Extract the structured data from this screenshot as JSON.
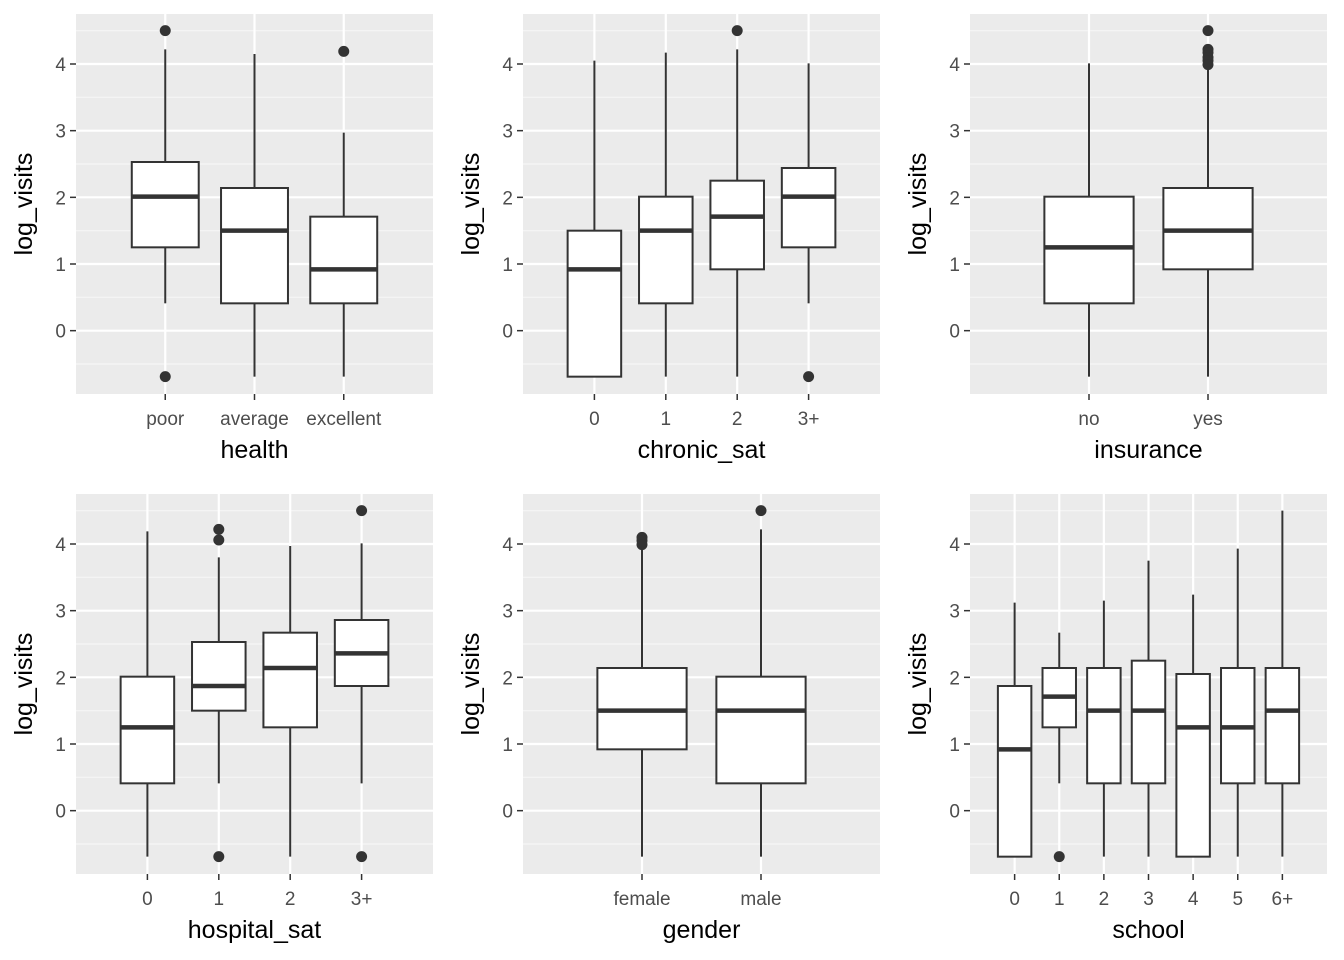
{
  "colors": {
    "panel_bg": "#EBEBEB",
    "grid_major": "#FFFFFF",
    "grid_minor": "#F5F5F5",
    "box_line": "#333333",
    "box_fill": "#FFFFFF",
    "tick_text": "#4D4D4D",
    "title_text": "#000000"
  },
  "chart_data": [
    {
      "type": "boxplot",
      "xlabel": "health",
      "ylabel": "log_visits",
      "ylim": [
        -0.95,
        4.75
      ],
      "yticks": [
        0,
        1,
        2,
        3,
        4
      ],
      "grid": true,
      "categories": [
        "poor",
        "average",
        "excellent"
      ],
      "boxes": [
        {
          "category": "poor",
          "whisker_low": 0.41,
          "q1": 1.25,
          "median": 2.01,
          "q3": 2.53,
          "whisker_high": 4.22,
          "outliers": [
            4.5,
            -0.69
          ]
        },
        {
          "category": "average",
          "whisker_low": -0.69,
          "q1": 0.41,
          "median": 1.5,
          "q3": 2.14,
          "whisker_high": 4.15,
          "outliers": []
        },
        {
          "category": "excellent",
          "whisker_low": -0.69,
          "q1": 0.41,
          "median": 0.92,
          "q3": 1.71,
          "whisker_high": 2.97,
          "outliers": [
            4.19
          ]
        }
      ]
    },
    {
      "type": "boxplot",
      "xlabel": "chronic_sat",
      "ylabel": "log_visits",
      "ylim": [
        -0.95,
        4.75
      ],
      "yticks": [
        0,
        1,
        2,
        3,
        4
      ],
      "grid": true,
      "categories": [
        "0",
        "1",
        "2",
        "3+"
      ],
      "boxes": [
        {
          "category": "0",
          "whisker_low": -0.69,
          "q1": -0.69,
          "median": 0.92,
          "q3": 1.5,
          "whisker_high": 4.05,
          "outliers": []
        },
        {
          "category": "1",
          "whisker_low": -0.69,
          "q1": 0.41,
          "median": 1.5,
          "q3": 2.01,
          "whisker_high": 4.17,
          "outliers": []
        },
        {
          "category": "2",
          "whisker_low": -0.69,
          "q1": 0.92,
          "median": 1.71,
          "q3": 2.25,
          "whisker_high": 4.22,
          "outliers": [
            4.5
          ]
        },
        {
          "category": "3+",
          "whisker_low": 0.41,
          "q1": 1.25,
          "median": 2.01,
          "q3": 2.44,
          "whisker_high": 4.01,
          "outliers": [
            -0.69
          ]
        }
      ]
    },
    {
      "type": "boxplot",
      "xlabel": "insurance",
      "ylabel": "log_visits",
      "ylim": [
        -0.95,
        4.75
      ],
      "yticks": [
        0,
        1,
        2,
        3,
        4
      ],
      "grid": true,
      "categories": [
        "no",
        "yes"
      ],
      "boxes": [
        {
          "category": "no",
          "whisker_low": -0.69,
          "q1": 0.41,
          "median": 1.25,
          "q3": 2.01,
          "whisker_high": 4.01,
          "outliers": []
        },
        {
          "category": "yes",
          "whisker_low": -0.69,
          "q1": 0.92,
          "median": 1.5,
          "q3": 2.14,
          "whisker_high": 3.95,
          "outliers": [
            4.5,
            4.22,
            4.17,
            4.1,
            4.05,
            3.99
          ]
        }
      ]
    },
    {
      "type": "boxplot",
      "xlabel": "hospital_sat",
      "ylabel": "log_visits",
      "ylim": [
        -0.95,
        4.75
      ],
      "yticks": [
        0,
        1,
        2,
        3,
        4
      ],
      "grid": true,
      "categories": [
        "0",
        "1",
        "2",
        "3+"
      ],
      "boxes": [
        {
          "category": "0",
          "whisker_low": -0.69,
          "q1": 0.41,
          "median": 1.25,
          "q3": 2.01,
          "whisker_high": 4.19,
          "outliers": []
        },
        {
          "category": "1",
          "whisker_low": 0.41,
          "q1": 1.5,
          "median": 1.87,
          "q3": 2.53,
          "whisker_high": 3.8,
          "outliers": [
            4.22,
            4.06,
            -0.69
          ]
        },
        {
          "category": "2",
          "whisker_low": -0.69,
          "q1": 1.25,
          "median": 2.14,
          "q3": 2.67,
          "whisker_high": 3.97,
          "outliers": []
        },
        {
          "category": "3+",
          "whisker_low": 0.41,
          "q1": 1.87,
          "median": 2.36,
          "q3": 2.86,
          "whisker_high": 4.01,
          "outliers": [
            4.5,
            -0.69
          ]
        }
      ]
    },
    {
      "type": "boxplot",
      "xlabel": "gender",
      "ylabel": "log_visits",
      "ylim": [
        -0.95,
        4.75
      ],
      "yticks": [
        0,
        1,
        2,
        3,
        4
      ],
      "grid": true,
      "categories": [
        "female",
        "male"
      ],
      "boxes": [
        {
          "category": "female",
          "whisker_low": -0.69,
          "q1": 0.92,
          "median": 1.5,
          "q3": 2.14,
          "whisker_high": 3.95,
          "outliers": [
            4.1,
            4.05,
            3.99
          ]
        },
        {
          "category": "male",
          "whisker_low": -0.69,
          "q1": 0.41,
          "median": 1.5,
          "q3": 2.01,
          "whisker_high": 4.22,
          "outliers": [
            4.5
          ]
        }
      ]
    },
    {
      "type": "boxplot",
      "xlabel": "school",
      "ylabel": "log_visits",
      "ylim": [
        -0.95,
        4.75
      ],
      "yticks": [
        0,
        1,
        2,
        3,
        4
      ],
      "grid": true,
      "categories": [
        "0",
        "1",
        "2",
        "3",
        "4",
        "5",
        "6+"
      ],
      "boxes": [
        {
          "category": "0",
          "whisker_low": -0.69,
          "q1": -0.69,
          "median": 0.92,
          "q3": 1.87,
          "whisker_high": 3.12,
          "outliers": []
        },
        {
          "category": "1",
          "whisker_low": 0.41,
          "q1": 1.25,
          "median": 1.71,
          "q3": 2.14,
          "whisker_high": 2.67,
          "outliers": [
            -0.69
          ]
        },
        {
          "category": "2",
          "whisker_low": -0.69,
          "q1": 0.41,
          "median": 1.5,
          "q3": 2.14,
          "whisker_high": 3.15,
          "outliers": []
        },
        {
          "category": "3",
          "whisker_low": -0.69,
          "q1": 0.41,
          "median": 1.5,
          "q3": 2.25,
          "whisker_high": 3.75,
          "outliers": []
        },
        {
          "category": "4",
          "whisker_low": -0.69,
          "q1": -0.69,
          "median": 1.25,
          "q3": 2.05,
          "whisker_high": 3.24,
          "outliers": []
        },
        {
          "category": "5",
          "whisker_low": -0.69,
          "q1": 0.41,
          "median": 1.25,
          "q3": 2.14,
          "whisker_high": 3.93,
          "outliers": []
        },
        {
          "category": "6+",
          "whisker_low": -0.69,
          "q1": 0.41,
          "median": 1.5,
          "q3": 2.14,
          "whisker_high": 4.5,
          "outliers": []
        }
      ]
    }
  ]
}
